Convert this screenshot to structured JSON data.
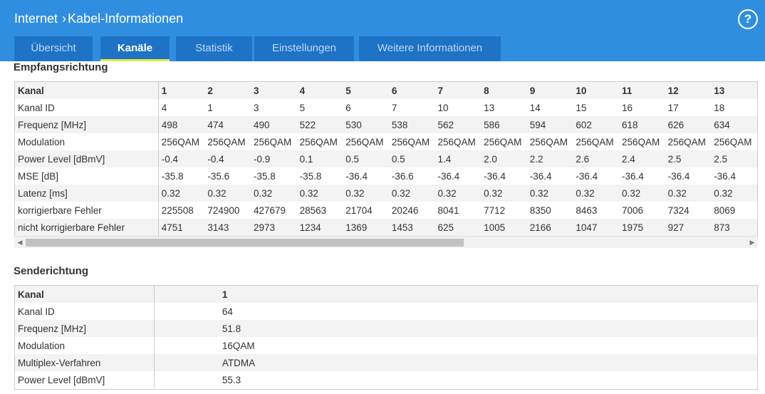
{
  "header": {
    "breadcrumb_root": "Internet",
    "breadcrumb_sep": "›",
    "breadcrumb_current": "Kabel-Informationen",
    "help_label": "?"
  },
  "tabs": [
    {
      "label": "Übersicht",
      "active": false
    },
    {
      "label": "Kanäle",
      "active": true
    },
    {
      "label": "Statistik",
      "active": false
    },
    {
      "label": "Einstellungen",
      "active": false
    },
    {
      "label": "Weitere Informationen",
      "active": false
    }
  ],
  "downstream": {
    "title": "Empfangsrichtung",
    "rows": [
      {
        "label": "Kanal",
        "values": [
          "1",
          "2",
          "3",
          "4",
          "5",
          "6",
          "7",
          "8",
          "9",
          "10",
          "11",
          "12",
          "13"
        ]
      },
      {
        "label": "Kanal ID",
        "values": [
          "4",
          "1",
          "3",
          "5",
          "6",
          "7",
          "10",
          "13",
          "14",
          "15",
          "16",
          "17",
          "18"
        ]
      },
      {
        "label": "Frequenz [MHz]",
        "values": [
          "498",
          "474",
          "490",
          "522",
          "530",
          "538",
          "562",
          "586",
          "594",
          "602",
          "618",
          "626",
          "634"
        ]
      },
      {
        "label": "Modulation",
        "values": [
          "256QAM",
          "256QAM",
          "256QAM",
          "256QAM",
          "256QAM",
          "256QAM",
          "256QAM",
          "256QAM",
          "256QAM",
          "256QAM",
          "256QAM",
          "256QAM",
          "256QAM"
        ]
      },
      {
        "label": "Power Level [dBmV]",
        "values": [
          "-0.4",
          "-0.4",
          "-0.9",
          "0.1",
          "0.5",
          "0.5",
          "1.4",
          "2.0",
          "2.2",
          "2.6",
          "2.4",
          "2.5",
          "2.5"
        ]
      },
      {
        "label": "MSE [dB]",
        "values": [
          "-35.8",
          "-35.6",
          "-35.8",
          "-35.8",
          "-36.4",
          "-36.6",
          "-36.4",
          "-36.4",
          "-36.4",
          "-36.4",
          "-36.4",
          "-36.4",
          "-36.4"
        ]
      },
      {
        "label": "Latenz [ms]",
        "values": [
          "0.32",
          "0.32",
          "0.32",
          "0.32",
          "0.32",
          "0.32",
          "0.32",
          "0.32",
          "0.32",
          "0.32",
          "0.32",
          "0.32",
          "0.32"
        ]
      },
      {
        "label": "korrigierbare Fehler",
        "values": [
          "225508",
          "724900",
          "427679",
          "28563",
          "21704",
          "20246",
          "8041",
          "7712",
          "8350",
          "8463",
          "7006",
          "7324",
          "8069"
        ]
      },
      {
        "label": "nicht korrigierbare Fehler",
        "values": [
          "4751",
          "3143",
          "2973",
          "1234",
          "1369",
          "1453",
          "625",
          "1005",
          "2166",
          "1047",
          "1975",
          "927",
          "873"
        ]
      }
    ]
  },
  "upstream": {
    "title": "Senderichtung",
    "rows": [
      {
        "label": "Kanal",
        "value": "1"
      },
      {
        "label": "Kanal ID",
        "value": "64"
      },
      {
        "label": "Frequenz [MHz]",
        "value": "51.8"
      },
      {
        "label": "Modulation",
        "value": "16QAM"
      },
      {
        "label": "Multiplex-Verfahren",
        "value": "ATDMA"
      },
      {
        "label": "Power Level [dBmV]",
        "value": "55.3"
      }
    ]
  },
  "scrollbar": {
    "left_arrow": "◀",
    "right_arrow": "▶"
  }
}
